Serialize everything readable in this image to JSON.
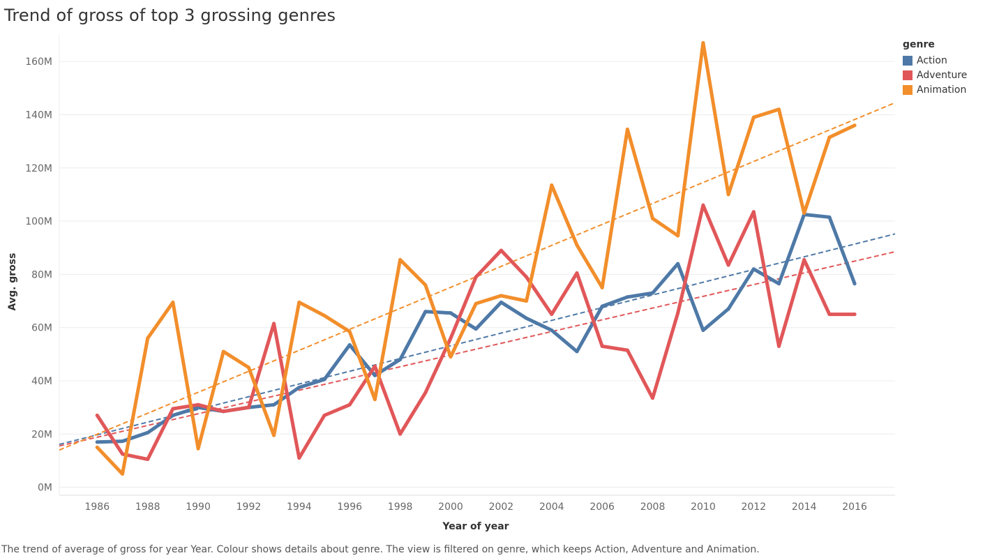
{
  "title": "Trend of gross of top 3 grossing genres",
  "caption": "The trend of average of gross for year Year.  Colour shows details about genre. The view is filtered on genre, which keeps Action, Adventure and Animation.",
  "legend": {
    "title": "genre",
    "placement": "top-right",
    "items": [
      {
        "label": "Action",
        "color": "#4e79a7"
      },
      {
        "label": "Adventure",
        "color": "#e15759"
      },
      {
        "label": "Animation",
        "color": "#f28e2b"
      }
    ]
  },
  "chart_data": {
    "type": "line",
    "title": "Trend of gross of top 3 grossing genres",
    "xlabel": "Year of year",
    "ylabel": "Avg. gross",
    "x": [
      1986,
      1987,
      1988,
      1989,
      1990,
      1991,
      1992,
      1993,
      1994,
      1995,
      1996,
      1997,
      1998,
      1999,
      2000,
      2001,
      2002,
      2003,
      2004,
      2005,
      2006,
      2007,
      2008,
      2009,
      2010,
      2011,
      2012,
      2013,
      2014,
      2015,
      2016
    ],
    "xlim": [
      1984.5,
      2017.6
    ],
    "ylim": [
      -3,
      170
    ],
    "x_ticks": [
      "1986",
      "1988",
      "1990",
      "1992",
      "1994",
      "1996",
      "1998",
      "2000",
      "2002",
      "2004",
      "2006",
      "2008",
      "2010",
      "2012",
      "2014",
      "2016"
    ],
    "y_ticks": [
      {
        "value": 0,
        "label": "0M"
      },
      {
        "value": 20,
        "label": "20M"
      },
      {
        "value": 40,
        "label": "40M"
      },
      {
        "value": 60,
        "label": "60M"
      },
      {
        "value": 80,
        "label": "80M"
      },
      {
        "value": 100,
        "label": "100M"
      },
      {
        "value": 120,
        "label": "120M"
      },
      {
        "value": 140,
        "label": "140M"
      },
      {
        "value": 160,
        "label": "160M"
      }
    ],
    "y_unit": "M",
    "grid": "horizontal",
    "series": [
      {
        "name": "Action",
        "color": "#4e79a7",
        "values": [
          17,
          17.3,
          20.5,
          27,
          30,
          28.5,
          30,
          31,
          37.5,
          40.5,
          53.5,
          42,
          48,
          66,
          65.5,
          59.5,
          69.5,
          63.5,
          59,
          51,
          68,
          71.5,
          73,
          84,
          59,
          67,
          82,
          76.5,
          102.5,
          101.5,
          76.5
        ],
        "trend": [
          16.1,
          95.2
        ]
      },
      {
        "name": "Adventure",
        "color": "#e15759",
        "values": [
          27,
          12.5,
          10.5,
          29.5,
          31,
          28.5,
          30,
          61.5,
          11,
          27,
          31,
          45.5,
          20,
          35.5,
          56,
          79,
          89,
          79,
          65,
          80.5,
          53,
          51.5,
          33.5,
          65.5,
          106,
          83.5,
          103.5,
          53,
          85.5,
          65,
          65
        ],
        "trend": [
          15.5,
          88.5
        ]
      },
      {
        "name": "Animation",
        "color": "#f28e2b",
        "values": [
          15,
          5,
          56,
          69.5,
          14.5,
          51,
          45,
          19.5,
          69.5,
          64.5,
          58.5,
          33,
          85.5,
          76,
          49,
          69,
          72,
          70,
          113.5,
          91,
          75,
          134.5,
          101,
          94.5,
          167,
          110,
          139,
          142,
          103,
          131.5,
          136
        ],
        "trend": [
          14,
          144.5
        ]
      }
    ]
  }
}
